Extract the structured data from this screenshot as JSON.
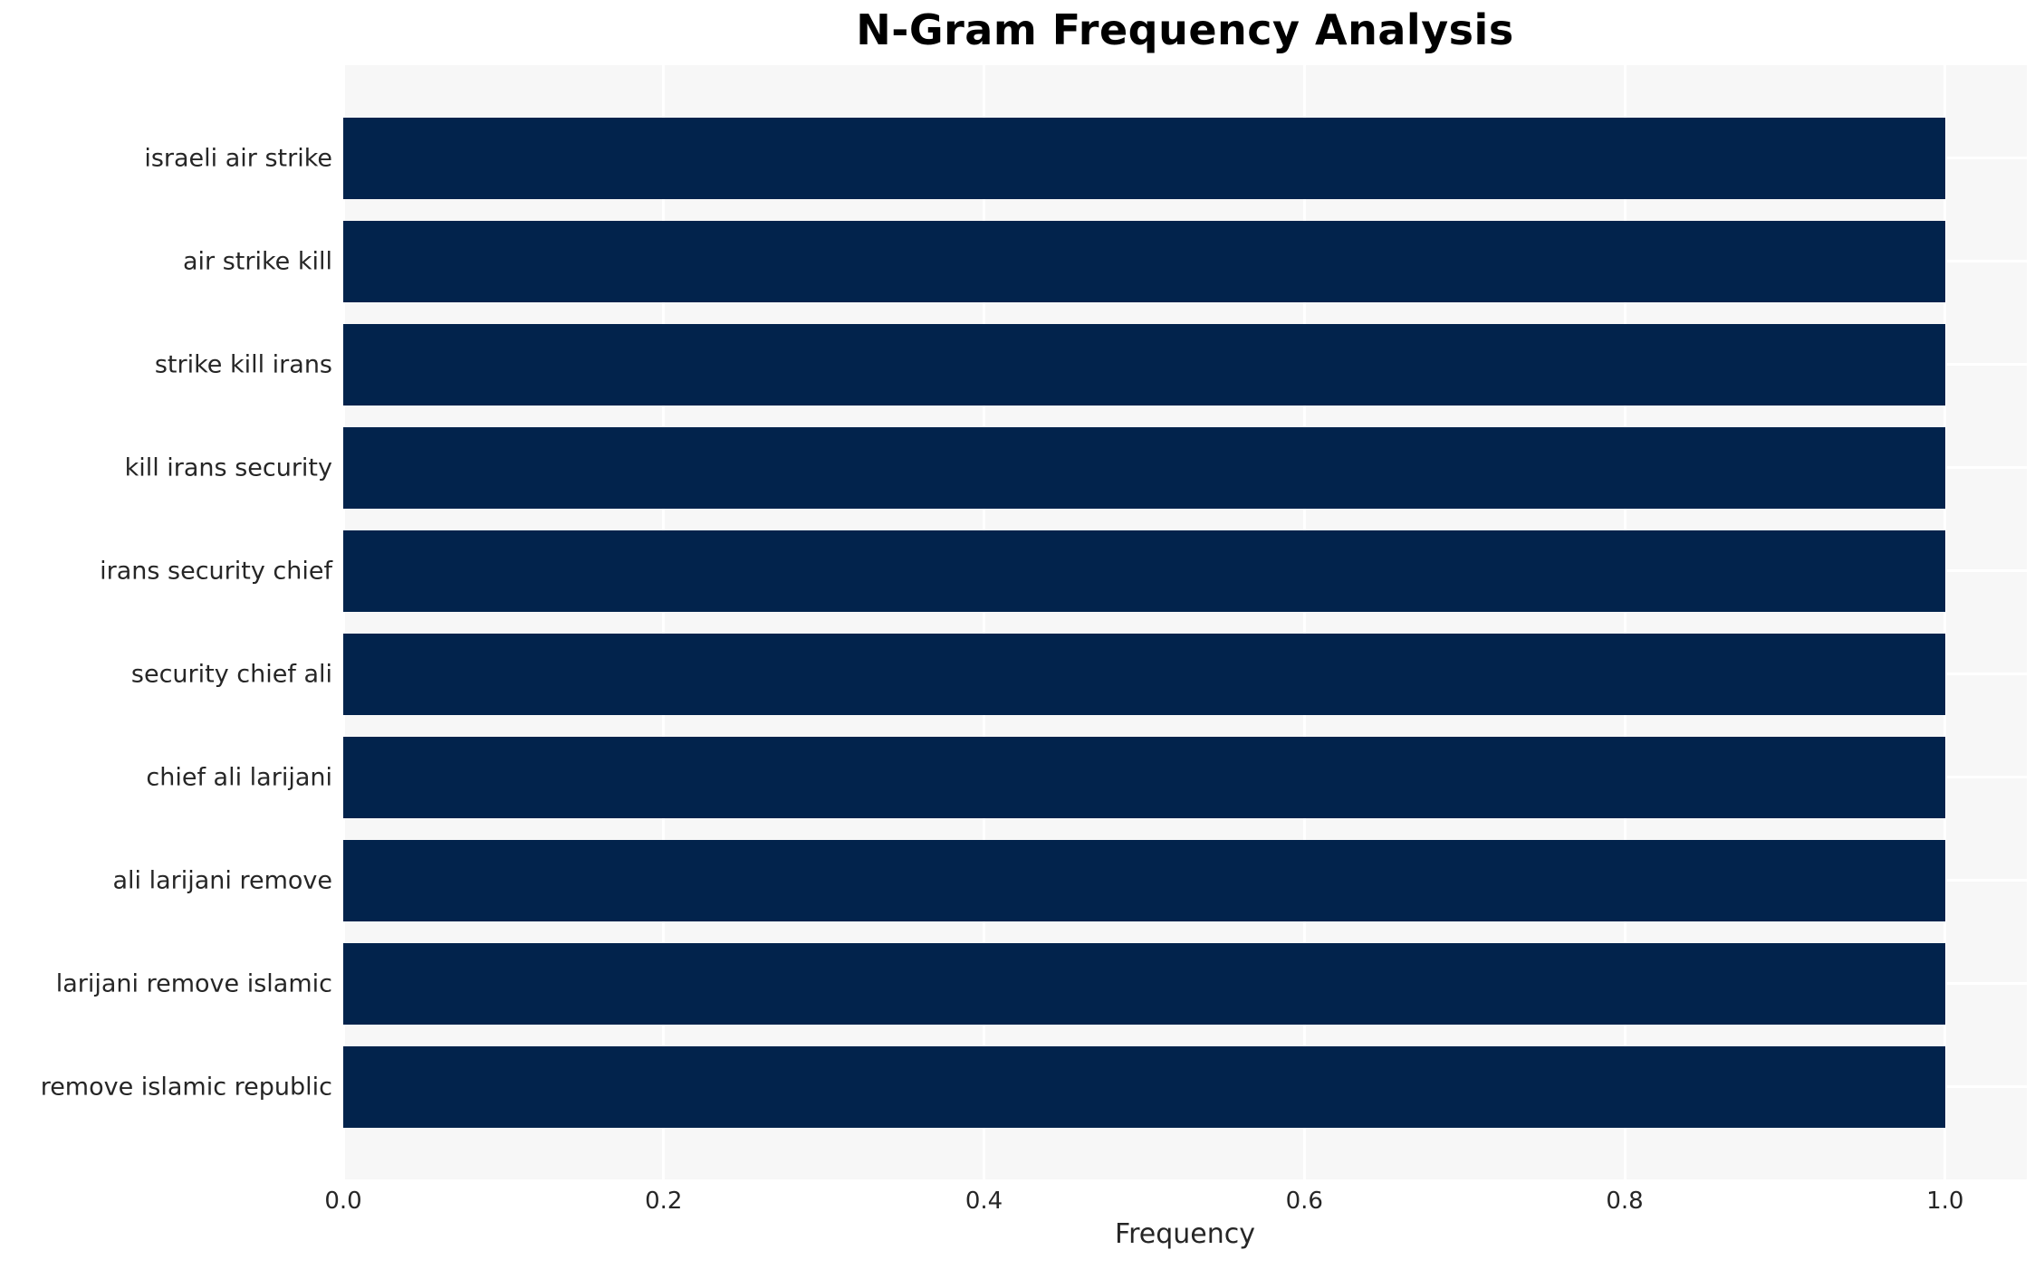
{
  "chart_data": {
    "type": "bar",
    "orientation": "horizontal",
    "title": "N-Gram Frequency Analysis",
    "xlabel": "Frequency",
    "ylabel": "",
    "categories": [
      "israeli air strike",
      "air strike kill",
      "strike kill irans",
      "kill irans security",
      "irans security chief",
      "security chief ali",
      "chief ali larijani",
      "ali larijani remove",
      "larijani remove islamic",
      "remove islamic republic"
    ],
    "values": [
      1.0,
      1.0,
      1.0,
      1.0,
      1.0,
      1.0,
      1.0,
      1.0,
      1.0,
      1.0
    ],
    "xlim": [
      0,
      1.051
    ],
    "xticks": [
      0,
      0.2,
      0.4,
      0.6,
      0.8,
      1.0
    ],
    "xtick_labels": [
      "0.0",
      "0.2",
      "0.4",
      "0.6",
      "0.8",
      "1.0"
    ],
    "grid": true,
    "legend": false,
    "colors": {
      "bar": "#02234c",
      "plot_bg": "#f7f7f7",
      "figure_bg": "#ffffff",
      "grid": "#ffffff",
      "text": "#262626",
      "title": "#000000"
    }
  }
}
